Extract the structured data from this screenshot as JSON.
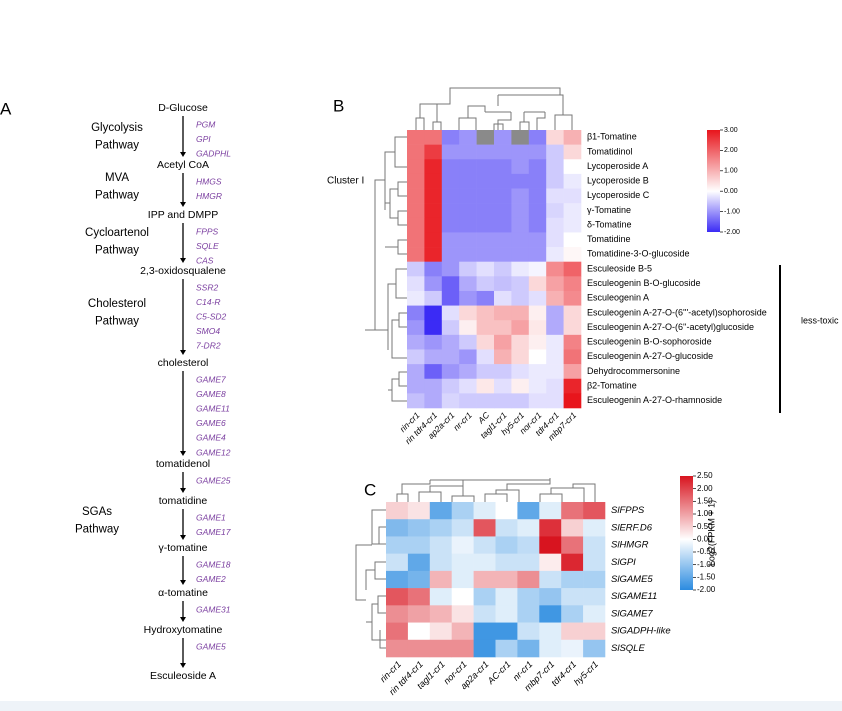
{
  "pathway": {
    "panel": "A",
    "steps": [
      "D-Glucose",
      "Acetyl CoA",
      "IPP and DMPP",
      "2,3-oxidosqualene",
      "cholesterol",
      "tomatidenol",
      "tomatidine",
      "γ-tomatine",
      "α-tomatine",
      "Hydroxytomatine",
      "Esculeoside A"
    ],
    "enzymes": [
      [
        "PGM",
        "GPI",
        "GADPHL"
      ],
      [
        "HMGS",
        "HMGR"
      ],
      [
        "FPPS",
        "SQLE",
        "CAS"
      ],
      [
        "SSR2",
        "C14-R",
        "C5-SD2",
        "SMO4",
        "7-DR2"
      ],
      [
        "GAME7",
        "GAME8",
        "GAME11",
        "GAME6",
        "GAME4",
        "GAME12"
      ],
      [
        "GAME25"
      ],
      [
        "GAME1",
        "GAME17"
      ],
      [
        "GAME18",
        "GAME2"
      ],
      [
        "GAME31"
      ],
      [
        "GAME5"
      ]
    ],
    "groups": [
      [
        "Glycolysis",
        "Pathway"
      ],
      [
        "MVA",
        "Pathway"
      ],
      [
        "Cycloartenol",
        "Pathway"
      ],
      [
        "Cholesterol",
        "Pathway"
      ],
      [
        "SGAs",
        "Pathway"
      ]
    ]
  },
  "chart_data": [
    {
      "type": "heatmap",
      "panel": "B",
      "columns": [
        "rin-cr1",
        "rin tdr4-cr1",
        "ap2a-cr1",
        "nr-cr1",
        "AC",
        "tagl1-cr1",
        "hy5-cr1",
        "nor-cr1",
        "tdr4-cr1",
        "mbp7-cr1"
      ],
      "rows": [
        "β1-Tomatine",
        "Tomatidinol",
        "Lycoperoside A",
        "Lycoperoside B",
        "Lycoperoside C",
        "γ-Tomatine",
        "δ-Tomatine",
        "Tomatidine",
        "Tomatidine-3-O-glucoside",
        "Esculeoside B-5",
        "Esculeogenin B-O-glucoside",
        "Esculeogenin A",
        "Esculeogenin A-27-O-(6'''-acetyl)sophoroside",
        "Esculeogenin A-27-O-(6''-acetyl)glucoside",
        "Esculeogenin B-O-sophoroside",
        "Esculeogenin A-27-O-glucoside",
        "Dehydrocommersonine",
        "β2-Tomatine",
        "Esculeogenin A-27-O-rhamnoside"
      ],
      "values": [
        [
          1.8,
          1.8,
          -1.2,
          -1.0,
          null,
          -1.0,
          null,
          -1.2,
          0.5,
          1.0
        ],
        [
          1.8,
          2.5,
          -1.0,
          -1.0,
          -1.0,
          -1.0,
          -1.0,
          -1.0,
          -0.5,
          0.5
        ],
        [
          1.8,
          2.8,
          -1.2,
          -1.2,
          -1.2,
          -1.2,
          -1.0,
          -1.2,
          -0.5,
          0.0
        ],
        [
          1.8,
          2.8,
          -1.2,
          -1.2,
          -1.2,
          -1.2,
          -1.2,
          -1.2,
          -0.5,
          -0.2
        ],
        [
          1.8,
          2.8,
          -1.2,
          -1.2,
          -1.2,
          -1.2,
          -1.0,
          -1.2,
          -0.3,
          -0.3
        ],
        [
          1.8,
          2.8,
          -1.2,
          -1.2,
          -1.2,
          -1.2,
          -1.0,
          -1.2,
          -0.4,
          -0.2
        ],
        [
          1.8,
          2.8,
          -1.2,
          -1.2,
          -1.2,
          -1.2,
          -1.0,
          -1.2,
          -0.3,
          -0.2
        ],
        [
          1.8,
          2.8,
          -1.0,
          -1.0,
          -1.0,
          -1.0,
          -1.0,
          -1.0,
          -0.3,
          0.0
        ],
        [
          1.8,
          2.8,
          -1.0,
          -1.0,
          -1.0,
          -1.0,
          -1.0,
          -1.0,
          -0.2,
          0.1
        ],
        [
          -0.5,
          -1.2,
          -1.0,
          -0.5,
          -0.3,
          -0.5,
          -0.2,
          -0.1,
          1.5,
          2.0
        ],
        [
          -0.3,
          -1.0,
          -1.5,
          -0.8,
          -0.5,
          -0.6,
          -0.5,
          0.5,
          1.2,
          1.6
        ],
        [
          -0.2,
          -0.5,
          -1.5,
          -1.0,
          -1.2,
          -0.3,
          -0.5,
          -0.3,
          1.0,
          1.5
        ],
        [
          -1.2,
          -2.0,
          -0.3,
          0.5,
          0.8,
          1.0,
          1.0,
          0.2,
          -0.8,
          0.5
        ],
        [
          -1.0,
          -2.0,
          -0.5,
          0.2,
          0.8,
          0.8,
          1.2,
          0.3,
          -0.8,
          0.5
        ],
        [
          -0.8,
          -1.0,
          -0.8,
          -0.5,
          0.5,
          1.2,
          0.5,
          0.2,
          -0.2,
          1.6
        ],
        [
          -0.5,
          -0.8,
          -0.8,
          -1.0,
          -0.3,
          1.0,
          0.5,
          0.0,
          -0.2,
          1.8
        ],
        [
          -0.8,
          -1.5,
          -1.0,
          -0.8,
          -0.5,
          -0.5,
          -0.3,
          -0.2,
          -0.2,
          1.2
        ],
        [
          -0.8,
          -0.8,
          -0.5,
          -0.3,
          0.3,
          -0.3,
          0.2,
          -0.2,
          -0.3,
          2.8
        ],
        [
          -0.6,
          -0.8,
          -0.4,
          -0.5,
          -0.5,
          -0.5,
          -0.5,
          -0.3,
          -0.3,
          3.0
        ]
      ],
      "zlim": [
        -2,
        3
      ],
      "zticks": [
        {
          "value": 3,
          "label": "3.00"
        },
        {
          "value": 2,
          "label": "2.00"
        },
        {
          "value": 1,
          "label": "1.00"
        },
        {
          "value": 0,
          "label": "0.00"
        },
        {
          "value": -1,
          "label": "-1.00"
        },
        {
          "value": -2,
          "label": "-2.00"
        }
      ],
      "colors": {
        "low": "#3b2bf5",
        "mid": "#ffffff",
        "high": "#e8151c",
        "missing": "#8a8a8a"
      },
      "annotations": [
        "Cluster I",
        "less-toxic"
      ]
    },
    {
      "type": "heatmap",
      "panel": "C",
      "columns": [
        "rin-cr1",
        "rin tdr4-cr1",
        "tagl1-cr1",
        "nor-cr1",
        "ap2a-cr1",
        "AC-cr1",
        "nr-cr1",
        "mbp7-cr1",
        "tdr4-cr1",
        "hy5-cr1"
      ],
      "rows": [
        "SlFPPS",
        "SlERF.D6",
        "SlHMGR",
        "SlGPI",
        "SlGAME5",
        "SlGAME11",
        "SlGAME7",
        "SlGADPH-like",
        "SlSQLE"
      ],
      "values": [
        [
          0.5,
          0.3,
          -1.5,
          -0.8,
          -0.3,
          0.0,
          -1.5,
          -0.3,
          1.5,
          1.8
        ],
        [
          -1.2,
          -1.0,
          -0.8,
          -0.5,
          1.8,
          -0.5,
          -0.3,
          2.2,
          0.5,
          -0.3
        ],
        [
          -0.8,
          -0.8,
          -0.5,
          -0.2,
          -0.5,
          -0.8,
          -0.6,
          2.5,
          1.5,
          -0.5
        ],
        [
          -0.5,
          -1.5,
          -0.5,
          -0.3,
          -0.3,
          -0.5,
          -0.5,
          0.2,
          2.3,
          -0.5
        ],
        [
          -1.5,
          -1.3,
          0.8,
          -0.3,
          0.8,
          0.8,
          1.2,
          -0.5,
          -0.8,
          -0.8
        ],
        [
          1.8,
          1.5,
          -0.3,
          0.0,
          -0.8,
          -0.3,
          -0.8,
          -1.0,
          -0.5,
          -0.5
        ],
        [
          1.2,
          1.0,
          0.8,
          0.3,
          -0.5,
          -0.3,
          -0.8,
          -1.8,
          -0.8,
          -0.3
        ],
        [
          1.5,
          0.0,
          0.3,
          0.8,
          -1.8,
          -1.8,
          -0.5,
          -0.3,
          0.5,
          0.5
        ],
        [
          1.2,
          1.2,
          1.2,
          1.2,
          -1.8,
          -0.8,
          -1.3,
          -0.3,
          -0.2,
          -1.0
        ]
      ],
      "zlim": [
        -2,
        2.5
      ],
      "zticks": [
        {
          "value": 2.5,
          "label": "2.50"
        },
        {
          "value": 2,
          "label": "2.00"
        },
        {
          "value": 1.5,
          "label": "1.50"
        },
        {
          "value": 1,
          "label": "1.00"
        },
        {
          "value": 0.5,
          "label": "0.50"
        },
        {
          "value": 0,
          "label": "0.00"
        },
        {
          "value": -0.5,
          "label": "-0.50"
        },
        {
          "value": -1,
          "label": "-1.00"
        },
        {
          "value": -1.5,
          "label": "-1.50"
        },
        {
          "value": -2,
          "label": "-2.00"
        }
      ],
      "colorbar_title": "Log2(FPKM + 1)",
      "colors": {
        "low": "#2b8be0",
        "mid": "#ffffff",
        "high": "#d8141f",
        "missing": "#8a8a8a"
      }
    }
  ]
}
